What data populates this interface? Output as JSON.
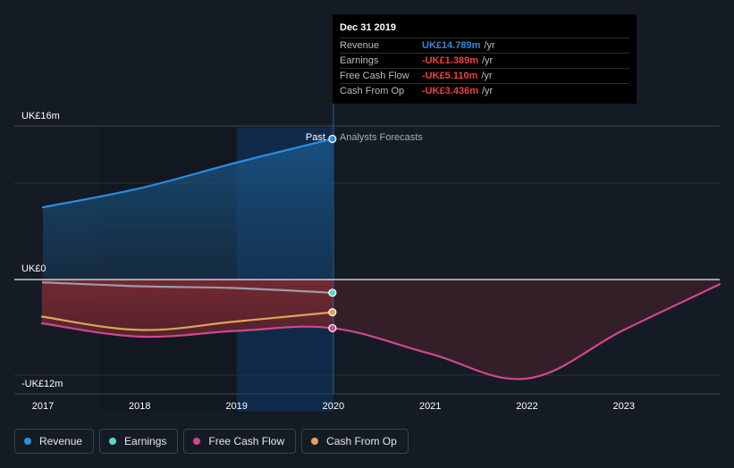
{
  "chart_data": {
    "type": "line",
    "x_ticks": [
      "2017",
      "2018",
      "2019",
      "2020",
      "2021",
      "2022",
      "2023"
    ],
    "y_labels": {
      "top": "UK£16m",
      "zero": "UK£0",
      "bottom": "-UK£12m"
    },
    "ylim": [
      -12,
      16
    ],
    "past_label": "Past",
    "forecast_label": "Analysts Forecasts",
    "series": [
      {
        "name": "Revenue",
        "color": "#2d8ce0",
        "points": [
          [
            2017.0,
            7.6
          ],
          [
            2018.0,
            9.6
          ],
          [
            2019.0,
            12.3
          ],
          [
            2019.99,
            14.789
          ]
        ]
      },
      {
        "name": "Earnings",
        "color": "#5ad6c8",
        "points": [
          [
            2017.0,
            -0.3
          ],
          [
            2018.0,
            -0.7
          ],
          [
            2019.0,
            -0.9
          ],
          [
            2019.99,
            -1.389
          ]
        ]
      },
      {
        "name": "Free Cash Flow",
        "color": "#d2468f",
        "points": [
          [
            2016.99,
            -4.6
          ],
          [
            2018.0,
            -6.0
          ],
          [
            2019.0,
            -5.4
          ],
          [
            2019.99,
            -5.11
          ],
          [
            2021.0,
            -7.8
          ],
          [
            2022.0,
            -10.4
          ],
          [
            2023.0,
            -5.3
          ],
          [
            2023.99,
            -0.5
          ]
        ]
      },
      {
        "name": "Cash From Op",
        "color": "#e3a35a",
        "points": [
          [
            2016.99,
            -3.9
          ],
          [
            2018.0,
            -5.3
          ],
          [
            2019.0,
            -4.4
          ],
          [
            2019.99,
            -3.436
          ]
        ]
      }
    ]
  },
  "tooltip": {
    "date": "Dec 31 2019",
    "rows": [
      {
        "label": "Revenue",
        "value": "UK£14.789m",
        "unit": "/yr",
        "color": "#2d8ce0"
      },
      {
        "label": "Earnings",
        "value": "-UK£1.389m",
        "unit": "/yr",
        "color": "#e8443f"
      },
      {
        "label": "Free Cash Flow",
        "value": "-UK£5.110m",
        "unit": "/yr",
        "color": "#e8443f"
      },
      {
        "label": "Cash From Op",
        "value": "-UK£3.436m",
        "unit": "/yr",
        "color": "#e8443f"
      }
    ]
  },
  "legend": [
    {
      "label": "Revenue",
      "color": "#2d8ce0"
    },
    {
      "label": "Earnings",
      "color": "#5ad6c8"
    },
    {
      "label": "Free Cash Flow",
      "color": "#d2468f"
    },
    {
      "label": "Cash From Op",
      "color": "#e3a35a"
    }
  ]
}
